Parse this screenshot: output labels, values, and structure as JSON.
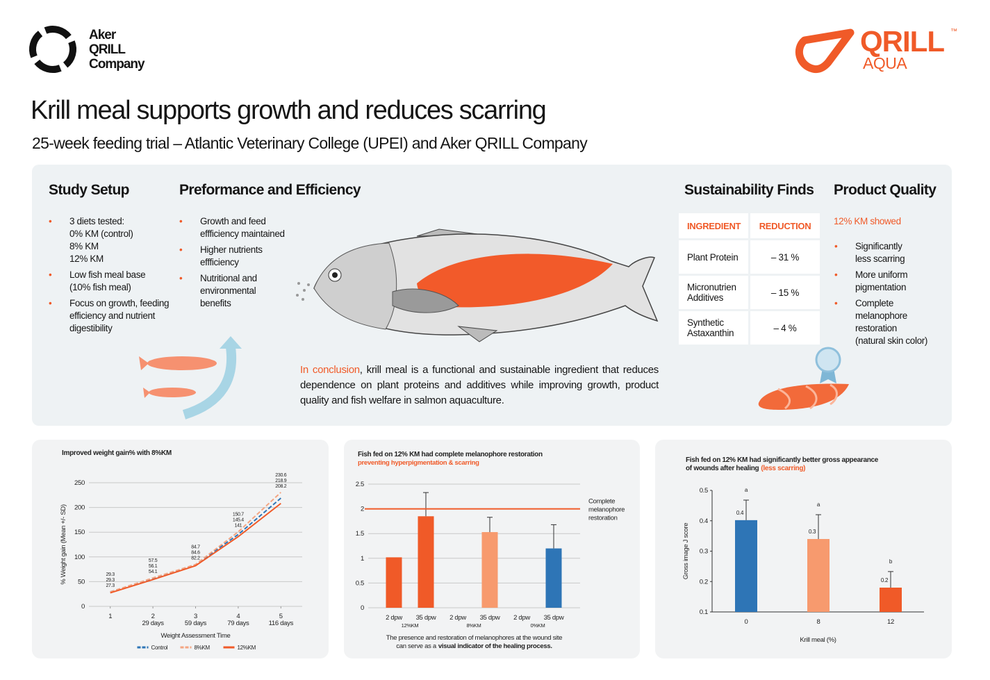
{
  "header": {
    "logo_left": [
      "Aker",
      "QRILL",
      "Company"
    ],
    "logo_right": {
      "brand": "QRILL",
      "tm": "™",
      "sub": "AQUA"
    },
    "title": "Krill meal supports growth and reduces scarring",
    "subtitle": "25-week feeding trial – Atlantic Veterinary College (UPEI) and Aker QRILL Company"
  },
  "study_setup": {
    "title": "Study Setup",
    "items": [
      [
        "3 diets tested:",
        "0% KM (control)",
        "8% KM",
        "12% KM"
      ],
      [
        "Low fish meal base",
        "(10% fish meal)"
      ],
      [
        "Focus on growth, feeding",
        "efficiency and nutrient",
        "digestibility"
      ]
    ]
  },
  "performance": {
    "title": "Preformance and Efficiency",
    "items": [
      [
        "Growth and feed",
        "effficiency maintained"
      ],
      [
        "Higher nutrients",
        "effficiency"
      ],
      [
        "Nutritional and",
        "environmental",
        "benefits"
      ]
    ]
  },
  "sustainability": {
    "title": "Sustainability Finds",
    "header": [
      "INGREDIENT",
      "REDUCTION"
    ],
    "rows": [
      [
        "Plant Protein",
        "– 31 %"
      ],
      [
        "Micronutrien Additives",
        "– 15 %"
      ],
      [
        "Synthetic Astaxanthin",
        "– 4 %"
      ]
    ]
  },
  "product_quality": {
    "title": "Product Quality",
    "lead": "12% KM showed",
    "items": [
      [
        "Significantly",
        "less scarring"
      ],
      [
        "More uniform",
        "pigmentation"
      ],
      [
        "Complete",
        "melanophore",
        "restoration",
        "(natural skin color)"
      ]
    ]
  },
  "conclusion": {
    "highlight": "In conclusion",
    "text": ", krill meal is a functional and sustainable ingredient that reduces dependence on plant proteins and additives while improving growth, product quality and fish welfare in salmon aquaculture."
  },
  "chart_data": [
    {
      "type": "line",
      "title": "Improved weight gain% with 8%KM",
      "xlabel": "Weight Assessment Time",
      "ylabel": "% Weight gain (Mean +/- SD)",
      "x": [
        1,
        2,
        3,
        4,
        5
      ],
      "xticks": [
        1,
        2,
        3,
        4,
        5
      ],
      "x_sublabels": [
        null,
        "29 days",
        "59 days",
        "79 days",
        "116 days"
      ],
      "xlim": [
        0.5,
        5.5
      ],
      "ylim": [
        0,
        250
      ],
      "yticks": [
        0,
        50,
        100,
        150,
        200,
        250
      ],
      "grid": true,
      "legend": "bottom",
      "series": [
        {
          "name": "Control",
          "color": "#2e75b6",
          "dash": true,
          "values": [
            29.3,
            56.1,
            84.6,
            145.4,
            218.9
          ]
        },
        {
          "name": "8%KM",
          "color": "#f4a582",
          "dash": true,
          "values": [
            29.3,
            57.5,
            84.7,
            150.7,
            230.6
          ]
        },
        {
          "name": "12%KM",
          "color": "#f05a28",
          "dash": false,
          "values": [
            27.3,
            54.1,
            82.2,
            141,
            208.2
          ]
        }
      ]
    },
    {
      "type": "bar",
      "title": "Fish fed on 12% KM had complete melanophore restoration",
      "subtitle": "preventing hyperpigmentation & scarring",
      "categories": [
        "2 dpw",
        "35 dpw",
        "2 dpw",
        "35 dpw",
        "2 dpw",
        "35 dpw"
      ],
      "groups": [
        "12%KM",
        "8%KM",
        "0%KM"
      ],
      "values": [
        1.02,
        1.85,
        null,
        1.53,
        null,
        1.2
      ],
      "errors": [
        null,
        0.48,
        null,
        0.3,
        null,
        0.48
      ],
      "colors": [
        "#f05a28",
        "#f05a28",
        null,
        "#f79a6e",
        null,
        "#2e75b6"
      ],
      "ylim": [
        0,
        2.5
      ],
      "yticks": [
        0,
        0.5,
        1,
        1.5,
        2,
        2.5
      ],
      "grid": true,
      "ref": {
        "value": 2,
        "label": [
          "Complete",
          "melanophore",
          "restoration"
        ],
        "color": "#f05a28"
      },
      "caption": [
        [
          "The presence and restoration of melanophores at the wound site"
        ],
        [
          "can serve as a",
          "visual indicator of the healing process."
        ]
      ]
    },
    {
      "type": "bar",
      "title": [
        "Fish fed on 12% KM had significantly better gross appearance",
        "of wounds after healing"
      ],
      "title_note": "(less scarring)",
      "categories": [
        "0",
        "8",
        "12"
      ],
      "values": [
        0.402,
        0.34,
        0.18
      ],
      "value_labels": [
        "0.4",
        "0.3",
        "0.2"
      ],
      "errors": [
        0.066,
        0.08,
        0.053
      ],
      "annotations": [
        "a",
        "a",
        "b"
      ],
      "colors": [
        "#2e75b6",
        "#f79a6e",
        "#f05a28"
      ],
      "ylim": [
        0.1,
        0.5
      ],
      "yticks": [
        0.1,
        0.2,
        0.3,
        0.4,
        0.5
      ],
      "grid": false,
      "axes": true,
      "xlabel": "Krill meal (%)",
      "ylabel": "Gross image J score"
    }
  ]
}
